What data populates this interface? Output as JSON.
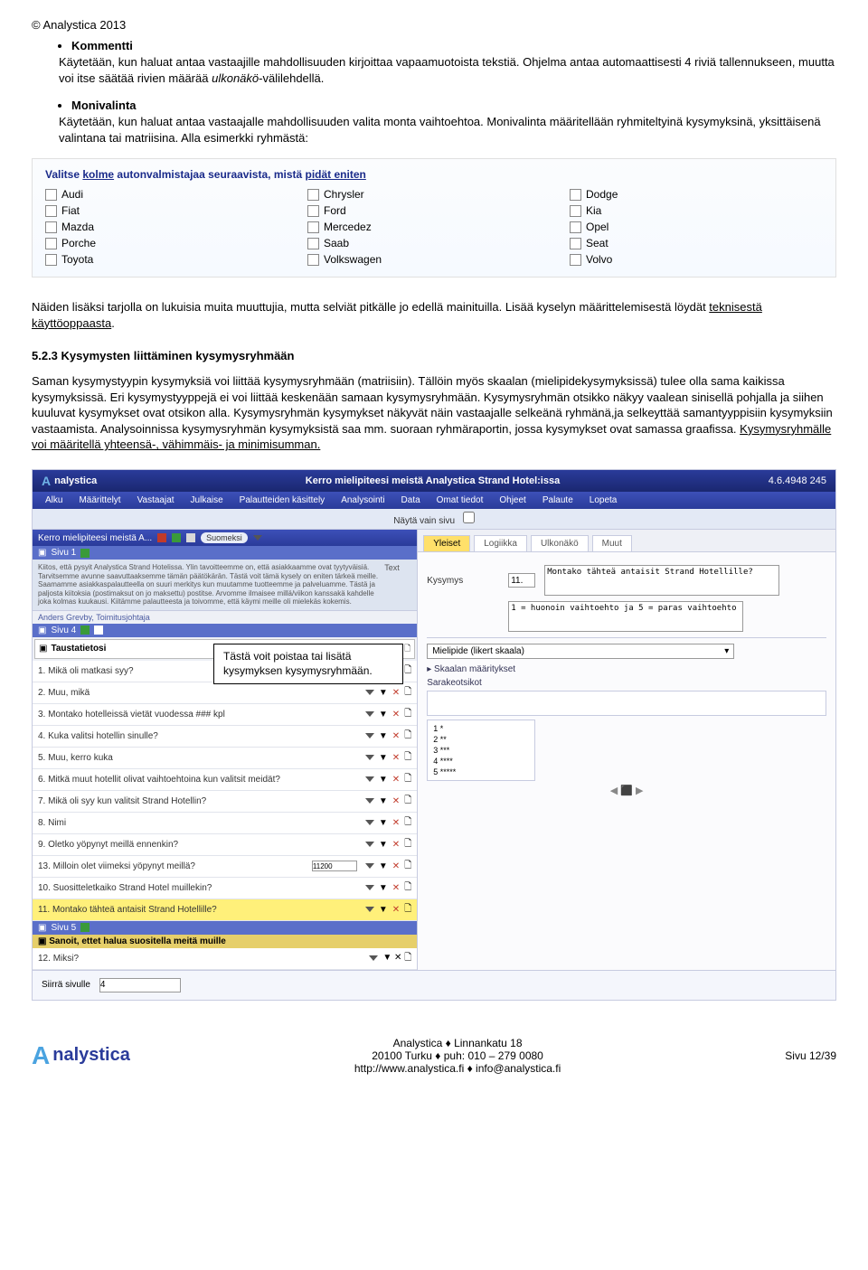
{
  "copyright": "© Analystica 2013",
  "bullets": {
    "kommentti": {
      "title": "Kommentti",
      "body1": "Käytetään, kun haluat antaa vastaajille mahdollisuuden kirjoittaa vapaamuotoista tekstiä. Ohjelma antaa automaattisesti 4 riviä tallennukseen, muutta voi itse säätää rivien määrää ",
      "body_italic": "ulkonäkö",
      "body2": "-välilehdellä."
    },
    "monivalinta": {
      "title": "Monivalinta",
      "body": "Käytetään, kun haluat antaa vastaajalle mahdollisuuden valita monta vaihtoehtoa. Monivalinta määritellään ryhmiteltyinä kysymyksinä, yksittäisenä valintana tai matriisina. Alla esimerkki ryhmästä:"
    }
  },
  "checkbox_example": {
    "prompt_pre": "Valitse ",
    "prompt_kolme": "kolme",
    "prompt_mid": " autonvalmistajaa seuraavista, mistä ",
    "prompt_pidat": "pidät eniten",
    "cols": [
      [
        "Audi",
        "Fiat",
        "Mazda",
        "Porche",
        "Toyota"
      ],
      [
        "Chrysler",
        "Ford",
        "Mercedez",
        "Saab",
        "Volkswagen"
      ],
      [
        "Dodge",
        "Kia",
        "Opel",
        "Seat",
        "Volvo"
      ]
    ]
  },
  "para1_a": "Näiden lisäksi tarjolla on lukuisia muita muuttujia, mutta selviät pitkälle jo edellä mainituilla. Lisää kyselyn määrittelemisestä löydät ",
  "para1_link": "teknisestä käyttöoppaasta",
  "para1_b": ".",
  "section_heading": "5.2.3   Kysymysten liittäminen kysymysryhmään",
  "para2": "Saman kysymystyypin kysymyksiä voi liittää kysymysryhmään (matriisiin). Tällöin myös skaalan (mielipidekysymyksissä) tulee olla sama kaikissa kysymyksissä. Eri kysymystyyppejä ei voi liittää keskenään samaan kysymysryhmään. Kysymysryhmän otsikko näkyy vaalean sinisellä pohjalla ja siihen kuuluvat kysymykset ovat otsikon alla. Kysymysryhmän kysymykset näkyvät näin vastaajalle selkeänä ryhmänä,ja selkeyttää samantyyppisiin kysymyksiin vastaamista. Analysoinnissa kysymysryhmän kysymyksistä saa mm. suoraan ryhmäraportin, jossa kysymykset ovat samassa graafissa. ",
  "para2_u": "Kysymysryhmälle voi määritellä yhteensä-, vähimmäis- ja minimisumman.",
  "app": {
    "title": "Kerro mielipiteesi meistä Analystica Strand Hotel:issa",
    "version": "4.6.4948 245",
    "menu": [
      "Alku",
      "Määrittelyt",
      "Vastaajat",
      "Julkaise",
      "Palautteiden käsittely",
      "Analysointi",
      "Data",
      "Omat tiedot",
      "Ohjeet",
      "Palaute",
      "Lopeta"
    ],
    "subbar": "Näytä vain sivu",
    "left": {
      "header": "Kerro mielipiteesi meistä A...",
      "lang": "Suomeksi",
      "sivu1": "Sivu 1",
      "textblock": "Kiitos, että pysyit Analystica Strand Hotelissa. Ylin tavoitteemme on, että asiakkaamme ovat tyytyväisiä. Tarvitsemme avunne saavuttaaksemme tämän päätökärän. Tästä voit tämä kysely on eniten tärkeä meille. Saamamme asiakkaspalautteella on suuri merkitys kun muutamme tuotteemme ja palveluamme. Tästä ja paljosta kiitoksia (postimaksut on jo maksettu) postitse. Arvomme ilmaisee millä/viikon kanssakä kahdelle joka kolmas kuukausi. Kiitämme palautteesta ja toivomme, että käymi meille oli mielekäs kokemis.",
      "textlabel": "Text",
      "author": "Anders Grevby, Toimitusjohtaja",
      "sivu4": "Sivu 4",
      "taust": "Taustatietosi",
      "questions": [
        {
          "n": "1.",
          "t": "Mikä oli matkasi syy?",
          "hi": false
        },
        {
          "n": "2.",
          "t": "Muu, mikä",
          "hi": false
        },
        {
          "n": "3.",
          "t": "Montako hotelleissä vietät vuodessa ### kpl",
          "hi": false
        },
        {
          "n": "4.",
          "t": "Kuka valitsi hotellin sinulle?",
          "hi": false
        },
        {
          "n": "5.",
          "t": "Muu, kerro kuka",
          "hi": false
        },
        {
          "n": "6.",
          "t": "Mitkä muut hotellit olivat vaihtoehtoina kun valitsit meidät?",
          "hi": false
        },
        {
          "n": "7.",
          "t": "Mikä oli syy kun valitsit Strand Hotellin?",
          "hi": false
        },
        {
          "n": "8.",
          "t": "Nimi",
          "hi": false
        },
        {
          "n": "9.",
          "t": "Oletko yöpynyt meillä ennenkin?",
          "hi": false
        },
        {
          "n": "13.",
          "t": "Milloin olet viimeksi yöpynyt meillä?",
          "hi": false,
          "date": true
        },
        {
          "n": "10.",
          "t": "Suositteletkaiko Strand Hotel muillekin?",
          "hi": false
        },
        {
          "n": "11.",
          "t": "Montako tähteä antaisit Strand Hotellille?",
          "hi": true
        }
      ],
      "sivu5": "Sivu 5",
      "said": "Sanoit, ettet halua suositella meitä muille",
      "q12n": "12.",
      "q12t": "Miksi?"
    },
    "right": {
      "tabs": [
        "Yleiset",
        "Logiikka",
        "Ulkonäkö",
        "Muut"
      ],
      "active": 0,
      "kysymys_label": "Kysymys",
      "kysymys_num": "11.",
      "kysymys_text": "Montako tähteä antaisit Strand Hotellille?",
      "helper": "1 = huonoin vaihtoehto ja 5 = paras vaihtoehto",
      "type_value": "Mielipide (likert skaala)",
      "skaalan": "Skaalan määritykset",
      "sarake": "Sarakeotsikot",
      "scale": [
        "1    *",
        "2    **",
        "3    ***",
        "4    ****",
        "5    *****"
      ],
      "siirra": "Siirrä sivulle",
      "siirra_val": "4"
    }
  },
  "callout": "Tästä voit poistaa tai lisätä kysymyksen kysymysryhmään.",
  "footer": {
    "line1": "Analystica ♦ Linnankatu 18",
    "line2": "20100 Turku ♦ puh: 010 – 279 0080",
    "line3": "http://www.analystica.fi ♦ info@analystica.fi",
    "page": "Sivu 12/39",
    "brand": "nalystica"
  }
}
